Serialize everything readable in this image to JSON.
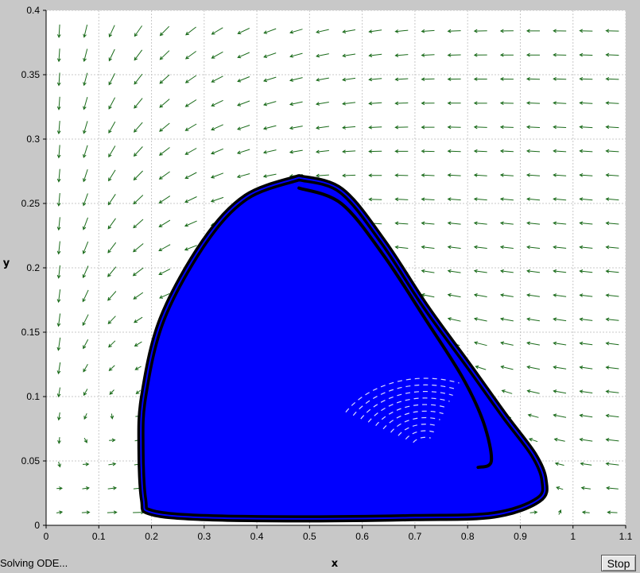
{
  "status_text": "Solving ODE...",
  "stop_label": "Stop",
  "colors": {
    "plot_bg": "#ffffff",
    "window_bg": "#c8c8c8",
    "grid": "#c8c8c8",
    "field_arrows": "#1a6b1a",
    "orbit_fill": "#0000ff",
    "orbit_edge": "#000000"
  },
  "chart_data": {
    "type": "phase-portrait",
    "xlabel": "x",
    "ylabel": "y",
    "xlim": [
      0,
      1.1
    ],
    "ylim": [
      0,
      0.4
    ],
    "xticks": [
      "0",
      "0.1",
      "0.2",
      "0.3",
      "0.4",
      "0.5",
      "0.6",
      "0.7",
      "0.8",
      "0.9",
      "1",
      "1.1"
    ],
    "yticks": [
      "0",
      "0.05",
      "0.1",
      "0.15",
      "0.2",
      "0.25",
      "0.3",
      "0.35",
      "0.4"
    ],
    "grid": true,
    "vector_field": {
      "x_start": 0.025,
      "x_step": 0.05,
      "x_count": 22,
      "y_start": 0.01,
      "y_step": 0.0187,
      "y_count": 21
    },
    "limit_cycle_outer": [
      [
        0.48,
        0.27
      ],
      [
        0.56,
        0.26
      ],
      [
        0.64,
        0.22
      ],
      [
        0.72,
        0.17
      ],
      [
        0.8,
        0.125
      ],
      [
        0.87,
        0.085
      ],
      [
        0.925,
        0.055
      ],
      [
        0.945,
        0.035
      ],
      [
        0.935,
        0.02
      ],
      [
        0.85,
        0.008
      ],
      [
        0.7,
        0.006
      ],
      [
        0.5,
        0.005
      ],
      [
        0.3,
        0.006
      ],
      [
        0.2,
        0.01
      ],
      [
        0.185,
        0.02
      ],
      [
        0.18,
        0.06
      ],
      [
        0.185,
        0.1
      ],
      [
        0.22,
        0.16
      ],
      [
        0.3,
        0.22
      ],
      [
        0.38,
        0.255
      ],
      [
        0.48,
        0.27
      ]
    ],
    "limit_cycle_inner": [
      [
        0.48,
        0.262
      ],
      [
        0.56,
        0.25
      ],
      [
        0.64,
        0.21
      ],
      [
        0.72,
        0.16
      ],
      [
        0.79,
        0.115
      ],
      [
        0.83,
        0.08
      ],
      [
        0.845,
        0.05
      ],
      [
        0.82,
        0.045
      ]
    ]
  }
}
